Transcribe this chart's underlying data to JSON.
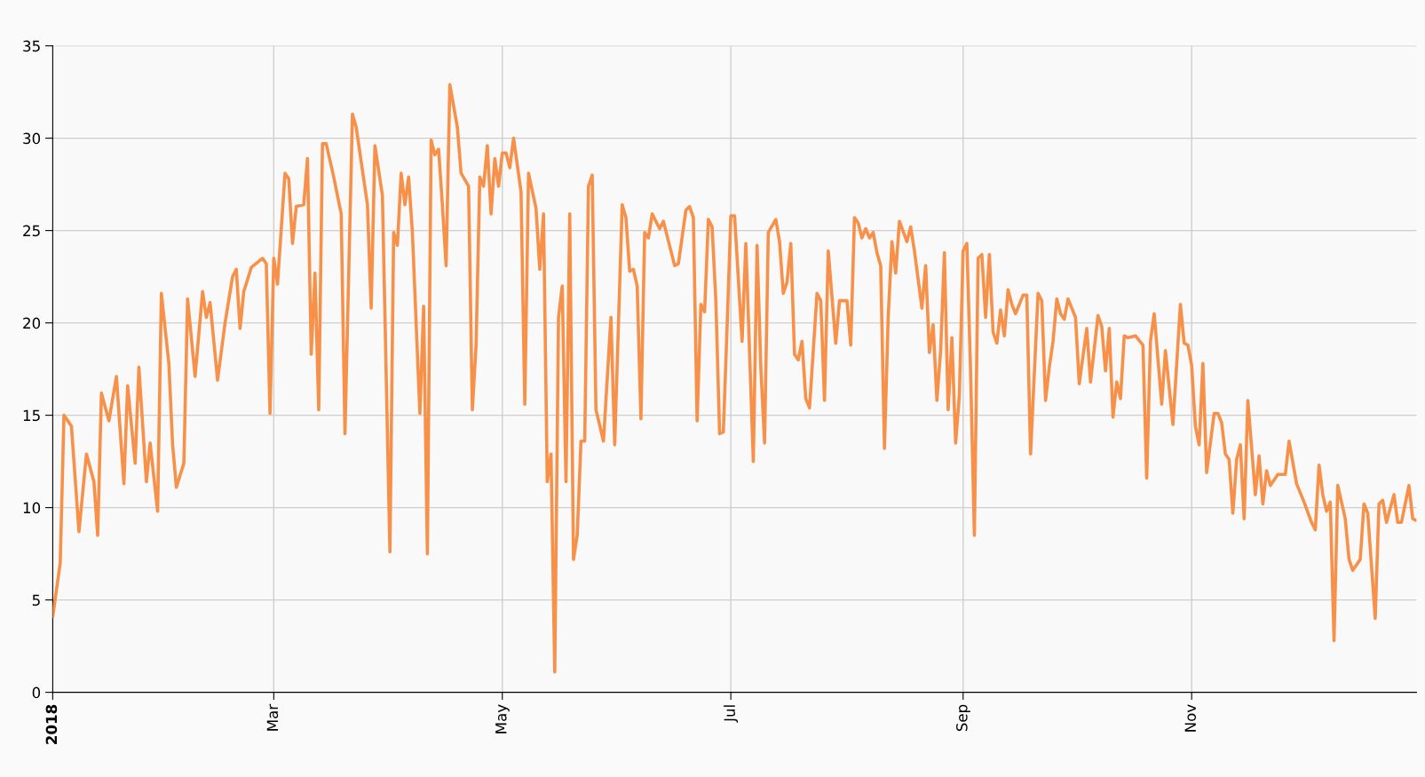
{
  "chart_data": {
    "type": "line",
    "x": [
      "2018-01-01",
      "2018-01-03",
      "2018-01-04",
      "2018-01-06",
      "2018-01-08",
      "2018-01-10",
      "2018-01-12",
      "2018-01-13",
      "2018-01-14",
      "2018-01-16",
      "2018-01-18",
      "2018-01-20",
      "2018-01-21",
      "2018-01-23",
      "2018-01-24",
      "2018-01-26",
      "2018-01-27",
      "2018-01-29",
      "2018-01-30",
      "2018-02-01",
      "2018-02-02",
      "2018-02-03",
      "2018-02-05",
      "2018-02-06",
      "2018-02-08",
      "2018-02-10",
      "2018-02-11",
      "2018-02-12",
      "2018-02-14",
      "2018-02-16",
      "2018-02-18",
      "2018-02-19",
      "2018-02-20",
      "2018-02-21",
      "2018-02-23",
      "2018-02-26",
      "2018-02-27",
      "2018-02-28",
      "2018-03-01",
      "2018-03-02",
      "2018-03-04",
      "2018-03-05",
      "2018-03-06",
      "2018-03-07",
      "2018-03-09",
      "2018-03-10",
      "2018-03-11",
      "2018-03-12",
      "2018-03-13",
      "2018-03-14",
      "2018-03-15",
      "2018-03-17",
      "2018-03-19",
      "2018-03-20",
      "2018-03-22",
      "2018-03-23",
      "2018-03-26",
      "2018-03-27",
      "2018-03-28",
      "2018-03-30",
      "2018-04-01",
      "2018-04-02",
      "2018-04-03",
      "2018-04-04",
      "2018-04-05",
      "2018-04-06",
      "2018-04-07",
      "2018-04-09",
      "2018-04-10",
      "2018-04-11",
      "2018-04-12",
      "2018-04-13",
      "2018-04-14",
      "2018-04-15",
      "2018-04-16",
      "2018-04-17",
      "2018-04-19",
      "2018-04-20",
      "2018-04-22",
      "2018-04-23",
      "2018-04-24",
      "2018-04-25",
      "2018-04-26",
      "2018-04-27",
      "2018-04-28",
      "2018-04-29",
      "2018-04-30",
      "2018-05-01",
      "2018-05-02",
      "2018-05-03",
      "2018-05-04",
      "2018-05-06",
      "2018-05-07",
      "2018-05-08",
      "2018-05-10",
      "2018-05-11",
      "2018-05-12",
      "2018-05-13",
      "2018-05-14",
      "2018-05-15",
      "2018-05-16",
      "2018-05-17",
      "2018-05-18",
      "2018-05-19",
      "2018-05-20",
      "2018-05-21",
      "2018-05-22",
      "2018-05-23",
      "2018-05-24",
      "2018-05-25",
      "2018-05-26",
      "2018-05-28",
      "2018-05-30",
      "2018-05-31",
      "2018-06-02",
      "2018-06-03",
      "2018-06-04",
      "2018-06-05",
      "2018-06-06",
      "2018-06-07",
      "2018-06-08",
      "2018-06-09",
      "2018-06-10",
      "2018-06-12",
      "2018-06-13",
      "2018-06-14",
      "2018-06-16",
      "2018-06-17",
      "2018-06-19",
      "2018-06-20",
      "2018-06-21",
      "2018-06-22",
      "2018-06-23",
      "2018-06-24",
      "2018-06-25",
      "2018-06-26",
      "2018-06-27",
      "2018-06-28",
      "2018-06-29",
      "2018-06-30",
      "2018-07-01",
      "2018-07-02",
      "2018-07-04",
      "2018-07-05",
      "2018-07-07",
      "2018-07-08",
      "2018-07-09",
      "2018-07-10",
      "2018-07-11",
      "2018-07-13",
      "2018-07-14",
      "2018-07-15",
      "2018-07-16",
      "2018-07-17",
      "2018-07-18",
      "2018-07-19",
      "2018-07-20",
      "2018-07-21",
      "2018-07-22",
      "2018-07-24",
      "2018-07-25",
      "2018-07-26",
      "2018-07-27",
      "2018-07-29",
      "2018-07-30",
      "2018-08-01",
      "2018-08-02",
      "2018-08-03",
      "2018-08-04",
      "2018-08-05",
      "2018-08-06",
      "2018-08-07",
      "2018-08-08",
      "2018-08-09",
      "2018-08-10",
      "2018-08-11",
      "2018-08-12",
      "2018-08-13",
      "2018-08-14",
      "2018-08-15",
      "2018-08-17",
      "2018-08-18",
      "2018-08-19",
      "2018-08-21",
      "2018-08-22",
      "2018-08-23",
      "2018-08-24",
      "2018-08-25",
      "2018-08-26",
      "2018-08-27",
      "2018-08-28",
      "2018-08-29",
      "2018-08-30",
      "2018-08-31",
      "2018-09-01",
      "2018-09-02",
      "2018-09-03",
      "2018-09-04",
      "2018-09-05",
      "2018-09-06",
      "2018-09-07",
      "2018-09-08",
      "2018-09-09",
      "2018-09-10",
      "2018-09-11",
      "2018-09-12",
      "2018-09-13",
      "2018-09-14",
      "2018-09-15",
      "2018-09-17",
      "2018-09-18",
      "2018-09-19",
      "2018-09-21",
      "2018-09-22",
      "2018-09-23",
      "2018-09-24",
      "2018-09-25",
      "2018-09-26",
      "2018-09-27",
      "2018-09-28",
      "2018-09-29",
      "2018-10-01",
      "2018-10-02",
      "2018-10-04",
      "2018-10-05",
      "2018-10-07",
      "2018-10-08",
      "2018-10-09",
      "2018-10-10",
      "2018-10-11",
      "2018-10-12",
      "2018-10-13",
      "2018-10-14",
      "2018-10-15",
      "2018-10-17",
      "2018-10-19",
      "2018-10-20",
      "2018-10-21",
      "2018-10-22",
      "2018-10-24",
      "2018-10-25",
      "2018-10-27",
      "2018-10-29",
      "2018-10-30",
      "2018-10-31",
      "2018-11-01",
      "2018-11-02",
      "2018-11-03",
      "2018-11-04",
      "2018-11-05",
      "2018-11-07",
      "2018-11-08",
      "2018-11-09",
      "2018-11-10",
      "2018-11-11",
      "2018-11-12",
      "2018-11-13",
      "2018-11-14",
      "2018-11-15",
      "2018-11-16",
      "2018-11-18",
      "2018-11-19",
      "2018-11-20",
      "2018-11-21",
      "2018-11-22",
      "2018-11-24",
      "2018-11-26",
      "2018-11-27",
      "2018-11-29",
      "2018-12-01",
      "2018-12-03",
      "2018-12-04",
      "2018-12-05",
      "2018-12-06",
      "2018-12-07",
      "2018-12-08",
      "2018-12-09",
      "2018-12-10",
      "2018-12-12",
      "2018-12-13",
      "2018-12-14",
      "2018-12-16",
      "2018-12-17",
      "2018-12-18",
      "2018-12-20",
      "2018-12-21",
      "2018-12-22",
      "2018-12-23",
      "2018-12-25",
      "2018-12-26",
      "2018-12-27",
      "2018-12-29",
      "2018-12-30",
      "2018-12-31"
    ],
    "series": [
      {
        "color": "#f7914a",
        "values": [
          4.1,
          7.0,
          15.0,
          14.4,
          8.7,
          12.9,
          11.4,
          8.5,
          16.2,
          14.7,
          17.1,
          11.3,
          16.6,
          12.4,
          17.6,
          11.4,
          13.5,
          9.8,
          21.6,
          17.8,
          13.4,
          11.1,
          12.4,
          21.3,
          17.1,
          21.7,
          20.3,
          21.1,
          16.9,
          20.0,
          22.5,
          22.9,
          19.7,
          21.7,
          23.0,
          23.5,
          23.2,
          15.1,
          23.5,
          22.1,
          28.1,
          27.8,
          24.3,
          26.3,
          26.4,
          28.9,
          18.3,
          22.7,
          15.3,
          29.7,
          29.7,
          27.9,
          25.9,
          14.0,
          31.3,
          30.6,
          26.4,
          20.8,
          29.6,
          26.9,
          7.6,
          24.9,
          24.2,
          28.1,
          26.4,
          27.9,
          24.9,
          15.1,
          20.9,
          7.5,
          29.9,
          29.1,
          29.4,
          26.4,
          23.1,
          32.9,
          30.6,
          28.1,
          27.4,
          15.3,
          18.8,
          27.9,
          27.4,
          29.6,
          25.9,
          28.9,
          27.4,
          29.2,
          29.2,
          28.4,
          30.0,
          27.1,
          15.6,
          28.1,
          26.2,
          22.9,
          25.9,
          11.4,
          12.9,
          1.1,
          20.3,
          22.0,
          11.4,
          25.9,
          7.2,
          8.5,
          13.6,
          13.6,
          27.4,
          28.0,
          15.3,
          13.6,
          20.3,
          13.4,
          26.4,
          25.7,
          22.8,
          22.9,
          22.0,
          14.8,
          24.9,
          24.6,
          25.9,
          25.1,
          25.5,
          24.7,
          23.1,
          23.2,
          26.1,
          26.3,
          25.7,
          14.7,
          21.0,
          20.6,
          25.6,
          25.2,
          21.2,
          14.0,
          14.1,
          19.8,
          25.8,
          25.8,
          19.0,
          24.3,
          12.5,
          24.2,
          17.6,
          13.5,
          24.9,
          25.6,
          24.4,
          21.6,
          22.2,
          24.3,
          18.3,
          18.0,
          19.0,
          15.9,
          15.4,
          21.6,
          21.2,
          15.8,
          23.9,
          18.9,
          21.2,
          21.2,
          18.8,
          25.7,
          25.4,
          24.6,
          25.1,
          24.6,
          24.9,
          23.8,
          23.1,
          13.2,
          20.3,
          24.4,
          22.7,
          25.5,
          24.4,
          25.2,
          23.9,
          20.8,
          23.1,
          18.4,
          19.9,
          15.8,
          18.5,
          23.8,
          15.3,
          19.2,
          13.5,
          16.1,
          23.9,
          24.3,
          17.3,
          8.5,
          23.5,
          23.7,
          20.3,
          23.7,
          19.5,
          18.9,
          20.7,
          19.3,
          21.8,
          21.0,
          20.5,
          21.5,
          21.5,
          12.9,
          21.6,
          21.2,
          15.8,
          17.6,
          19.0,
          21.3,
          20.5,
          20.2,
          21.3,
          20.3,
          16.7,
          19.7,
          16.8,
          20.4,
          19.8,
          17.4,
          19.7,
          14.9,
          16.8,
          15.9,
          19.3,
          19.2,
          19.3,
          18.8,
          11.6,
          19.0,
          20.5,
          15.6,
          18.5,
          14.5,
          21.0,
          18.9,
          18.8,
          17.7,
          14.4,
          13.4,
          17.8,
          11.9,
          15.1,
          15.1,
          14.6,
          12.9,
          12.6,
          9.7,
          12.6,
          13.4,
          9.4,
          15.8,
          10.7,
          12.8,
          10.2,
          12.0,
          11.2,
          11.8,
          11.8,
          13.6,
          11.3,
          10.3,
          9.2,
          8.8,
          12.3,
          10.7,
          9.8,
          10.3,
          2.8,
          11.2,
          9.4,
          7.2,
          6.6,
          7.2,
          10.2,
          9.7,
          4.0,
          10.2,
          10.4,
          9.2,
          10.7,
          9.2,
          9.2,
          11.2,
          9.4,
          9.3
        ]
      }
    ],
    "xlim": [
      "2018-01-01",
      "2018-12-31"
    ],
    "xticks": [
      {
        "value": "2018-01-01",
        "label": "2018"
      },
      {
        "value": "2018-03-01",
        "label": "Mar"
      },
      {
        "value": "2018-05-01",
        "label": "May"
      },
      {
        "value": "2018-07-01",
        "label": "Jul"
      },
      {
        "value": "2018-09-01",
        "label": "Sep"
      },
      {
        "value": "2018-11-01",
        "label": "Nov"
      }
    ],
    "ylim": [
      0,
      35
    ],
    "yticks": [
      0,
      5,
      10,
      15,
      20,
      25,
      30,
      35
    ],
    "grid": true,
    "line_style": "solid",
    "marker": "none"
  }
}
